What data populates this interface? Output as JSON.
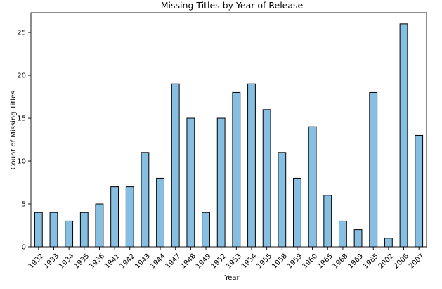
{
  "chart_data": {
    "type": "bar",
    "title": "Missing Titles by Year of Release",
    "xlabel": "Year",
    "ylabel": "Count of Missing Titles",
    "categories": [
      "1932",
      "1933",
      "1934",
      "1935",
      "1936",
      "1941",
      "1942",
      "1943",
      "1944",
      "1947",
      "1948",
      "1949",
      "1952",
      "1953",
      "1954",
      "1955",
      "1958",
      "1959",
      "1960",
      "1965",
      "1968",
      "1969",
      "1985",
      "2002",
      "2006",
      "2007"
    ],
    "values": [
      4,
      4,
      3,
      4,
      5,
      7,
      7,
      11,
      8,
      19,
      15,
      4,
      15,
      18,
      19,
      16,
      11,
      8,
      14,
      6,
      3,
      2,
      18,
      1,
      26,
      13
    ],
    "ylim": [
      0,
      27.3
    ],
    "yticks": [
      0,
      5,
      10,
      15,
      20,
      25
    ],
    "grid": false,
    "bar_color": "#87bfe3",
    "bar_edge_color": "#000000"
  }
}
